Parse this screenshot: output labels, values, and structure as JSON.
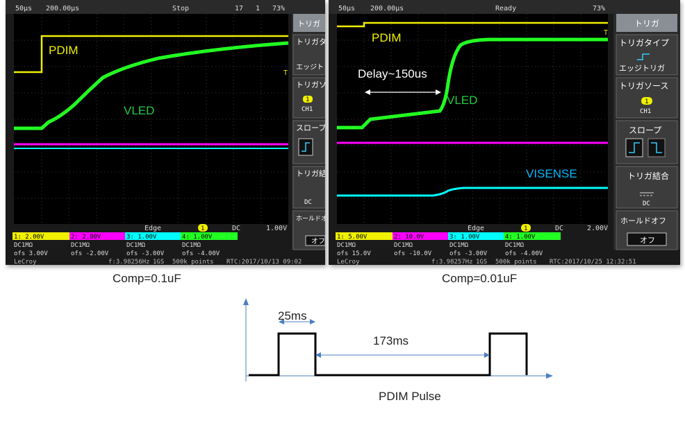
{
  "scope1": {
    "status": {
      "timebase": "50μs",
      "delay": "200.00μs",
      "state": "Stop",
      "count": "17",
      "acq": "1",
      "zoom": "73%"
    },
    "menu": {
      "title": "トリガ",
      "type_label": "トリガタイプ",
      "type_value": "エッジトリガ",
      "source_label": "トリガソース",
      "source_badge": "1",
      "source_value": "CH1",
      "slope_label": "スロープ",
      "coupling_label": "トリガ結合",
      "coupling_value": "DC",
      "holdoff_label": "ホールドオフ",
      "holdoff_value": "オフ"
    },
    "labels": {
      "pdim": "PDIM",
      "vled": "VLED"
    },
    "trigger_info": {
      "mode": "Edge",
      "channel": "1",
      "coupling": "DC",
      "level": "1.00V"
    },
    "channels": [
      {
        "scale": "1: 2.00V",
        "coupling": "DC1MΩ",
        "offset": "ofs 3.00V",
        "color": "#f0f000"
      },
      {
        "scale": "2: 2.00V",
        "coupling": "DC1MΩ",
        "offset": "ofs -2.00V",
        "color": "#ff00ff"
      },
      {
        "scale": "3: 1.00V",
        "coupling": "DC1MΩ",
        "offset": "ofs -3.00V",
        "color": "#00ffff"
      },
      {
        "scale": "4: 1.00V",
        "coupling": "DC1MΩ",
        "offset": "ofs -4.00V",
        "color": "#22ff22"
      }
    ],
    "bottom": {
      "brand": "LeCroy",
      "freq": "f:3.98256Hz",
      "rate": "1GS",
      "points": "500k points",
      "rtc": "RTC:2017/10/13 09:02"
    },
    "caption": "Comp=0.1uF"
  },
  "scope2": {
    "status": {
      "timebase": "50μs",
      "delay": "200.00μs",
      "state": "Ready",
      "count": "",
      "acq": "",
      "zoom": "73%"
    },
    "menu": {
      "title": "トリガ",
      "type_label": "トリガタイプ",
      "type_value": "エッジトリガ",
      "source_label": "トリガソース",
      "source_badge": "1",
      "source_value": "CH1",
      "slope_label": "スロープ",
      "coupling_label": "トリガ結合",
      "coupling_value": "DC",
      "holdoff_label": "ホールドオフ",
      "holdoff_value": "オフ"
    },
    "labels": {
      "pdim": "PDIM",
      "vled": "VLED",
      "visense": "VISENSE",
      "delay": "Delay~150us"
    },
    "trigger_info": {
      "mode": "Edge",
      "channel": "1",
      "coupling": "DC",
      "level": "2.00V"
    },
    "channels": [
      {
        "scale": "1: 5.00V",
        "coupling": "DC1MΩ",
        "offset": "ofs 15.0V",
        "color": "#f0f000"
      },
      {
        "scale": "2: 10.0V",
        "coupling": "DC1MΩ",
        "offset": "ofs -10.0V",
        "color": "#ff00ff"
      },
      {
        "scale": "3: 1.00V",
        "coupling": "DC1MΩ",
        "offset": "ofs -3.00V",
        "color": "#00ffff"
      },
      {
        "scale": "4: 1.00V",
        "coupling": "DC1MΩ",
        "offset": "ofs -4.00V",
        "color": "#22ff22"
      }
    ],
    "bottom": {
      "brand": "LeCroy",
      "freq": "f:3.98257Hz",
      "rate": "1GS",
      "points": "500k points",
      "rtc": "RTC:2017/10/25 12:32:51"
    },
    "caption": "Comp=0.01uF"
  },
  "pulse": {
    "width_label": "25ms",
    "period_label": "173ms",
    "title": "PDIM Pulse"
  },
  "colors": {
    "yellow": "#f0f000",
    "magenta": "#ff00ff",
    "cyan": "#00ffff",
    "green": "#22ff22",
    "label_green": "#22cc44",
    "label_cyan": "#00b8ff",
    "arrow_blue": "#4a7fc1"
  }
}
